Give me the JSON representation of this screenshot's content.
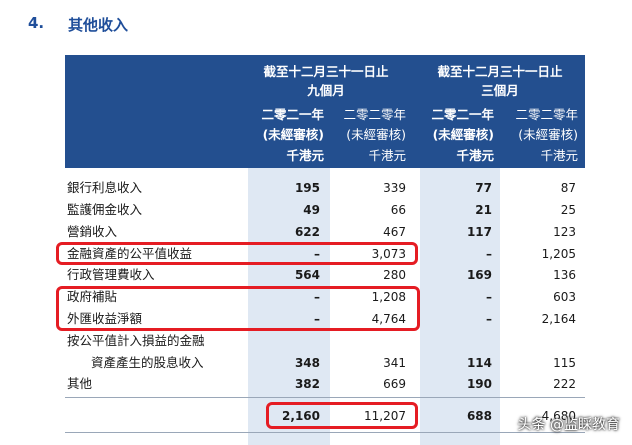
{
  "section": {
    "number": "4.",
    "title": "其他收入"
  },
  "header": {
    "group1": "截至十二月三十一日止",
    "group1_sub": "九個月",
    "group2": "截至十二月三十一日止",
    "group2_sub": "三個月",
    "col1": {
      "year": "二零二一年",
      "status": "(未經審核)",
      "unit": "千港元"
    },
    "col2": {
      "year": "二零二零年",
      "status": "(未經審核)",
      "unit": "千港元"
    },
    "col3": {
      "year": "二零二一年",
      "status": "(未經審核)",
      "unit": "千港元"
    },
    "col4": {
      "year": "二零二零年",
      "status": "(未經審核)",
      "unit": "千港元"
    }
  },
  "rows": [
    {
      "label": "銀行利息收入",
      "v1": "195",
      "v2": "339",
      "v3": "77",
      "v4": "87"
    },
    {
      "label": "監護佣金收入",
      "v1": "49",
      "v2": "66",
      "v3": "21",
      "v4": "25"
    },
    {
      "label": "營銷收入",
      "v1": "622",
      "v2": "467",
      "v3": "117",
      "v4": "123"
    },
    {
      "label": "金融資產的公平值收益",
      "v1": "–",
      "v2": "3,073",
      "v3": "–",
      "v4": "1,205"
    },
    {
      "label": "行政管理費收入",
      "v1": "564",
      "v2": "280",
      "v3": "169",
      "v4": "136"
    },
    {
      "label": "政府補貼",
      "v1": "–",
      "v2": "1,208",
      "v3": "–",
      "v4": "603"
    },
    {
      "label": "外匯收益淨額",
      "v1": "–",
      "v2": "4,764",
      "v3": "–",
      "v4": "2,164"
    },
    {
      "label": "按公平值計入損益的金融",
      "v1": "",
      "v2": "",
      "v3": "",
      "v4": ""
    },
    {
      "label": "資產產生的股息收入",
      "v1": "348",
      "v2": "341",
      "v3": "114",
      "v4": "115"
    },
    {
      "label": "其他",
      "v1": "382",
      "v2": "669",
      "v3": "190",
      "v4": "222"
    }
  ],
  "total": {
    "v1": "2,160",
    "v2": "11,207",
    "v3": "688",
    "v4": "4,680"
  },
  "watermark": "头条 @监睬教育"
}
